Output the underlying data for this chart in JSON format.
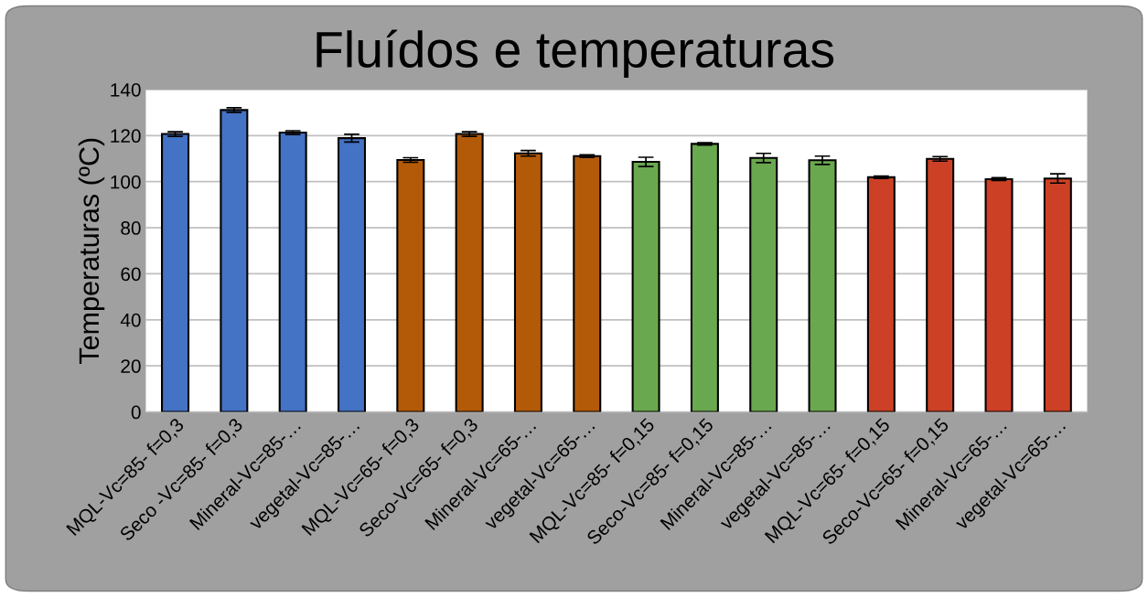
{
  "chart_data": {
    "type": "bar",
    "title": "Fluídos e temperaturas",
    "ylabel": "Temperaturas (ºC)",
    "categories": [
      "MQL-Vc=85- f=0,3",
      "Seco -Vc=85- f=0,3",
      "Mineral-Vc=85-…",
      "vegetal-Vc=85-…",
      "MQL-Vc=65- f=0,3",
      "Seco-Vc=65- f=0,3",
      "Mineral-Vc=65-…",
      "vegetal-Vc=65-…",
      "MQL-Vc=85- f=0,15",
      "Seco-Vc=85- f=0,15",
      "Mineral-Vc=85-…",
      "vegetal-Vc=85-…",
      "MQL-Vc=65- f=0,15",
      "Seco-Vc=65- f=0,15",
      "Mineral-Vc=65-…",
      "vegetal-Vc=65-…"
    ],
    "values": [
      120.7,
      131.1,
      121.3,
      118.9,
      109.4,
      120.7,
      112.3,
      111.1,
      108.6,
      116.4,
      110.3,
      109.3,
      101.9,
      109.9,
      101.1,
      101.4
    ],
    "errors": [
      1,
      1,
      0.8,
      1.7,
      1,
      1,
      1.2,
      0.6,
      2,
      0.5,
      2,
      1.8,
      0.5,
      1,
      0.6,
      2
    ],
    "colors": [
      "#4472c4",
      "#4472c4",
      "#4472c4",
      "#4472c4",
      "#b35a09",
      "#b35a09",
      "#b35a09",
      "#b35a09",
      "#6aa84f",
      "#6aa84f",
      "#6aa84f",
      "#6aa84f",
      "#cc4125",
      "#cc4125",
      "#cc4125",
      "#cc4125"
    ],
    "ylim": [
      0,
      140
    ],
    "yticks": [
      0,
      20,
      40,
      60,
      80,
      100,
      120,
      140
    ],
    "grid": "y"
  }
}
